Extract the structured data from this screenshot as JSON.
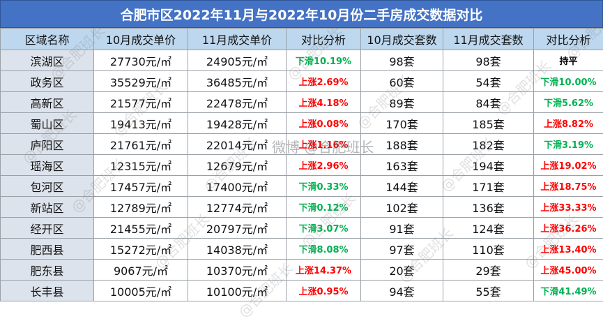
{
  "title": "合肥市区2022年11月与2022年10月份二手房成交数据对比",
  "headers": [
    "区域名称",
    "10月成交单价",
    "11月成交单价",
    "对比分析",
    "10月成交套数",
    "11月成交套数",
    "对比分析"
  ],
  "rows": [
    {
      "region": "滨湖区",
      "oct_price": "27730元/㎡",
      "nov_price": "24905元/㎡",
      "price_cmp": "下滑10.19%",
      "price_dir": "down",
      "oct_units": "98套",
      "nov_units": "98套",
      "units_cmp": "持平",
      "units_dir": "flat"
    },
    {
      "region": "政务区",
      "oct_price": "35529元/㎡",
      "nov_price": "36485元/㎡",
      "price_cmp": "上涨2.69%",
      "price_dir": "up",
      "oct_units": "60套",
      "nov_units": "54套",
      "units_cmp": "下滑10.00%",
      "units_dir": "down"
    },
    {
      "region": "高新区",
      "oct_price": "21577元/㎡",
      "nov_price": "22478元/㎡",
      "price_cmp": "上涨4.18%",
      "price_dir": "up",
      "oct_units": "89套",
      "nov_units": "84套",
      "units_cmp": "下滑5.62%",
      "units_dir": "down"
    },
    {
      "region": "蜀山区",
      "oct_price": "19413元/㎡",
      "nov_price": "19428元/㎡",
      "price_cmp": "上涨0.08%",
      "price_dir": "up",
      "oct_units": "170套",
      "nov_units": "185套",
      "units_cmp": "上涨8.82%",
      "units_dir": "up"
    },
    {
      "region": "庐阳区",
      "oct_price": "21761元/㎡",
      "nov_price": "22014元/㎡",
      "price_cmp": "上涨1.16%",
      "price_dir": "up",
      "oct_units": "188套",
      "nov_units": "182套",
      "units_cmp": "下滑3.19%",
      "units_dir": "down"
    },
    {
      "region": "瑶海区",
      "oct_price": "12315元/㎡",
      "nov_price": "12679元/㎡",
      "price_cmp": "上涨2.96%",
      "price_dir": "up",
      "oct_units": "163套",
      "nov_units": "194套",
      "units_cmp": "上涨19.02%",
      "units_dir": "up"
    },
    {
      "region": "包河区",
      "oct_price": "17457元/㎡",
      "nov_price": "17400元/㎡",
      "price_cmp": "下滑0.33%",
      "price_dir": "down",
      "oct_units": "144套",
      "nov_units": "171套",
      "units_cmp": "上涨18.75%",
      "units_dir": "up"
    },
    {
      "region": "新站区",
      "oct_price": "12789元/㎡",
      "nov_price": "12774元/㎡",
      "price_cmp": "下滑0.12%",
      "price_dir": "down",
      "oct_units": "102套",
      "nov_units": "136套",
      "units_cmp": "上涨33.33%",
      "units_dir": "up"
    },
    {
      "region": "经开区",
      "oct_price": "21455元/㎡",
      "nov_price": "20797元/㎡",
      "price_cmp": "下滑3.07%",
      "price_dir": "down",
      "oct_units": "91套",
      "nov_units": "124套",
      "units_cmp": "上涨36.26%",
      "units_dir": "up"
    },
    {
      "region": "肥西县",
      "oct_price": "15272元/㎡",
      "nov_price": "14038元/㎡",
      "price_cmp": "下滑8.08%",
      "price_dir": "down",
      "oct_units": "97套",
      "nov_units": "110套",
      "units_cmp": "上涨13.40%",
      "units_dir": "up"
    },
    {
      "region": "肥东县",
      "oct_price": "9067元/㎡",
      "nov_price": "10370元/㎡",
      "price_cmp": "上涨14.37%",
      "price_dir": "up",
      "oct_units": "20套",
      "nov_units": "29套",
      "units_cmp": "上涨45.00%",
      "units_dir": "up"
    },
    {
      "region": "长丰县",
      "oct_price": "10005元/㎡",
      "nov_price": "10100元/㎡",
      "price_cmp": "上涨0.95%",
      "price_dir": "up",
      "oct_units": "94套",
      "nov_units": "55套",
      "units_cmp": "下滑41.49%",
      "units_dir": "down"
    }
  ],
  "watermark": {
    "text": "@合肥班长",
    "center_text": "微博 @合肥班长"
  },
  "colors": {
    "title_bg": "#4472c4",
    "header_bg": "#bdd7ee",
    "region_bg": "#dde3ec",
    "up": "#ff0000",
    "down": "#00b050"
  }
}
